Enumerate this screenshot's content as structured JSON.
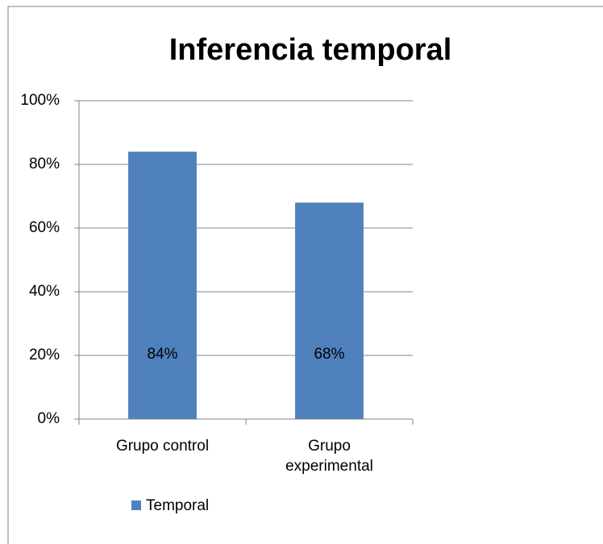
{
  "chart_data": {
    "type": "bar",
    "title": "Inferencia temporal",
    "categories": [
      "Grupo control",
      "Grupo experimental"
    ],
    "series": [
      {
        "name": "Temporal",
        "color": "#4f81bd",
        "values": [
          84,
          68
        ],
        "value_labels": [
          "84%",
          "68%"
        ]
      }
    ],
    "ylim": [
      0,
      100
    ],
    "yticks": [
      {
        "value": 0,
        "label": "0%"
      },
      {
        "value": 20,
        "label": "20%"
      },
      {
        "value": 40,
        "label": "40%"
      },
      {
        "value": 60,
        "label": "60%"
      },
      {
        "value": 80,
        "label": "80%"
      },
      {
        "value": 100,
        "label": "100%"
      }
    ],
    "grid": true,
    "legend": "bottom"
  }
}
